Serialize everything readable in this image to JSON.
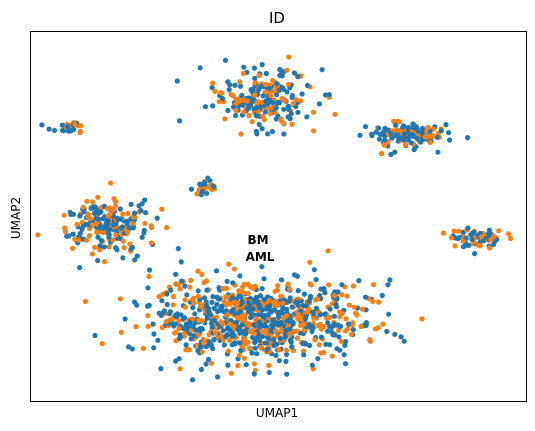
{
  "chart_data": {
    "type": "scatter",
    "title": "ID",
    "xlabel": "UMAP1",
    "ylabel": "UMAP2",
    "grid": false,
    "ticks": false,
    "legend": "none",
    "annotations": [
      "BM",
      "AML"
    ],
    "series_colors": [
      "#1f77b4",
      "#ff7f0e"
    ],
    "clusters": [
      {
        "name": "top-center",
        "center": [
          0.47,
          0.82
        ],
        "spread": [
          0.1,
          0.08
        ],
        "n": 220
      },
      {
        "name": "top-right",
        "center": [
          0.75,
          0.72
        ],
        "spread": [
          0.08,
          0.035
        ],
        "n": 140
      },
      {
        "name": "left-small",
        "center": [
          0.08,
          0.74
        ],
        "spread": [
          0.04,
          0.015
        ],
        "n": 25
      },
      {
        "name": "center-small",
        "center": [
          0.35,
          0.58
        ],
        "spread": [
          0.025,
          0.02
        ],
        "n": 30
      },
      {
        "name": "left-big",
        "center": [
          0.15,
          0.48
        ],
        "spread": [
          0.09,
          0.07
        ],
        "n": 230
      },
      {
        "name": "right-small",
        "center": [
          0.9,
          0.44
        ],
        "spread": [
          0.06,
          0.025
        ],
        "n": 70
      },
      {
        "name": "bottom-big",
        "center": [
          0.46,
          0.22
        ],
        "spread": [
          0.21,
          0.11
        ],
        "n": 900
      }
    ]
  }
}
